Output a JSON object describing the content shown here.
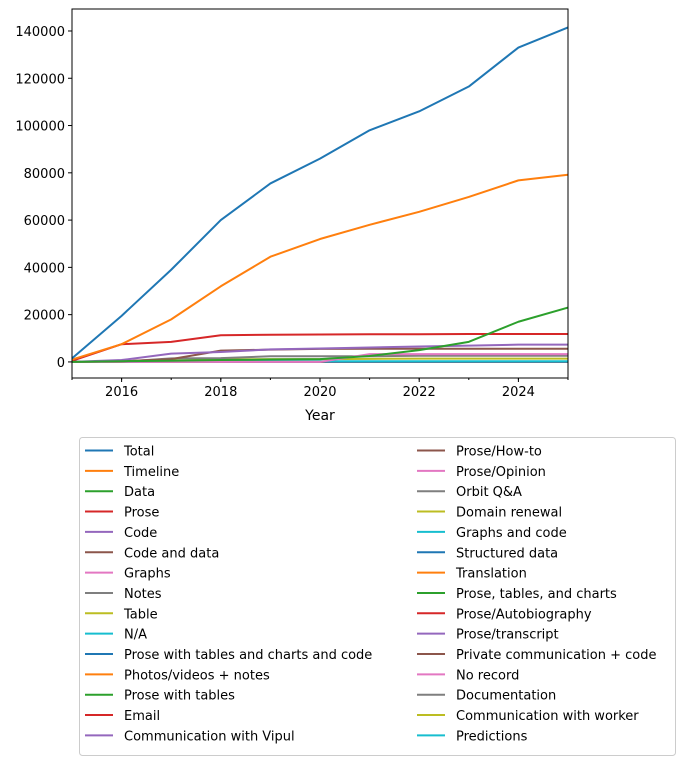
{
  "chart_data": {
    "type": "line",
    "title": "",
    "xlabel": "Year",
    "ylabel": "",
    "xlim": [
      2015,
      2025
    ],
    "ylim": [
      -6800,
      149300
    ],
    "x": [
      2015,
      2016,
      2017,
      2018,
      2019,
      2020,
      2021,
      2022,
      2023,
      2024,
      2025
    ],
    "xticks": [
      "2016",
      "2018",
      "2020",
      "2022",
      "2024"
    ],
    "yticks": [
      "0",
      "20000",
      "40000",
      "60000",
      "80000",
      "100000",
      "120000",
      "140000"
    ],
    "grid": false,
    "legend_placement": "below, two columns",
    "colors": [
      "#1f77b4",
      "#ff7f0e",
      "#2ca02c",
      "#d62728",
      "#9467bd",
      "#8c564b",
      "#e377c2",
      "#7f7f7f",
      "#bcbd22",
      "#17becf"
    ],
    "series": [
      {
        "name": "Total",
        "values": [
          1500,
          19500,
          39000,
          60000,
          75500,
          86000,
          98000,
          106000,
          116500,
          133000,
          141500
        ]
      },
      {
        "name": "Timeline",
        "values": [
          1000,
          7500,
          18000,
          32000,
          44500,
          52000,
          58000,
          63500,
          69800,
          76800,
          79200
        ]
      },
      {
        "name": "Data",
        "values": [
          0,
          300,
          500,
          800,
          1000,
          1200,
          2500,
          5000,
          8500,
          17000,
          23000
        ]
      },
      {
        "name": "Prose",
        "values": [
          500,
          7500,
          8500,
          11300,
          11500,
          11600,
          11700,
          11700,
          11800,
          11800,
          11800
        ]
      },
      {
        "name": "Code",
        "values": [
          0,
          800,
          3500,
          4200,
          5300,
          5700,
          6100,
          6500,
          6900,
          7300,
          7300
        ]
      },
      {
        "name": "Code and data",
        "values": [
          0,
          300,
          1200,
          4800,
          5200,
          5500,
          5600,
          5600,
          5600,
          5600,
          5600
        ]
      },
      {
        "name": "Graphs",
        "values": [
          0,
          0,
          0,
          0,
          0,
          0,
          3300,
          3300,
          3300,
          3300,
          3300
        ]
      },
      {
        "name": "Notes",
        "values": [
          0,
          100,
          1500,
          1600,
          2400,
          2400,
          2400,
          2600,
          2600,
          2600,
          2600
        ]
      },
      {
        "name": "Table",
        "values": [
          0,
          100,
          600,
          1000,
          1200,
          1200,
          1300,
          1400,
          1400,
          1400,
          1400
        ]
      },
      {
        "name": "N/A",
        "values": [
          0,
          100,
          200,
          300,
          300,
          300,
          300,
          300,
          300,
          300,
          300
        ]
      },
      {
        "name": "Prose with tables and charts and code",
        "values": [
          0,
          0,
          100,
          100,
          100,
          100,
          100,
          100,
          100,
          100,
          100
        ]
      },
      {
        "name": "Photos/videos + notes",
        "values": [
          0,
          0,
          0,
          100,
          100,
          100,
          100,
          100,
          100,
          100,
          100
        ]
      },
      {
        "name": "Prose with tables",
        "values": [
          0,
          0,
          100,
          200,
          200,
          200,
          200,
          200,
          200,
          200,
          200
        ]
      },
      {
        "name": "Email",
        "values": [
          0,
          0,
          0,
          0,
          50,
          50,
          50,
          50,
          50,
          50,
          50
        ]
      },
      {
        "name": "Communication with Vipul",
        "values": [
          0,
          0,
          0,
          50,
          50,
          50,
          50,
          50,
          50,
          50,
          50
        ]
      },
      {
        "name": "Prose/How-to",
        "values": [
          0,
          0,
          0,
          0,
          0,
          50,
          50,
          50,
          50,
          50,
          50
        ]
      },
      {
        "name": "Prose/Opinion",
        "values": [
          0,
          0,
          0,
          0,
          0,
          50,
          50,
          50,
          50,
          50,
          50
        ]
      },
      {
        "name": "Orbit Q&A",
        "values": [
          0,
          0,
          0,
          0,
          0,
          0,
          50,
          50,
          50,
          50,
          50
        ]
      },
      {
        "name": "Domain renewal",
        "values": [
          0,
          0,
          0,
          0,
          0,
          0,
          0,
          50,
          50,
          50,
          50
        ]
      },
      {
        "name": "Graphs and code",
        "values": [
          0,
          0,
          0,
          0,
          0,
          0,
          0,
          50,
          50,
          50,
          50
        ]
      },
      {
        "name": "Structured data",
        "values": [
          0,
          0,
          0,
          0,
          0,
          0,
          0,
          0,
          50,
          50,
          50
        ]
      },
      {
        "name": "Translation",
        "values": [
          0,
          0,
          0,
          0,
          0,
          0,
          0,
          0,
          50,
          50,
          50
        ]
      },
      {
        "name": "Prose, tables, and charts",
        "values": [
          0,
          0,
          0,
          0,
          0,
          0,
          0,
          0,
          0,
          50,
          50
        ]
      },
      {
        "name": "Prose/Autobiography",
        "values": [
          0,
          0,
          0,
          0,
          0,
          0,
          0,
          0,
          0,
          50,
          50
        ]
      },
      {
        "name": "Prose/transcript",
        "values": [
          0,
          0,
          0,
          0,
          0,
          0,
          0,
          0,
          0,
          0,
          50
        ]
      },
      {
        "name": "Private communication + code",
        "values": [
          0,
          0,
          0,
          0,
          0,
          0,
          0,
          0,
          0,
          0,
          50
        ]
      },
      {
        "name": "No record",
        "values": [
          0,
          0,
          0,
          0,
          0,
          0,
          0,
          0,
          0,
          0,
          50
        ]
      },
      {
        "name": "Documentation",
        "values": [
          0,
          0,
          0,
          0,
          0,
          0,
          0,
          0,
          0,
          0,
          50
        ]
      },
      {
        "name": "Communication with worker",
        "values": [
          0,
          0,
          0,
          0,
          0,
          0,
          0,
          0,
          0,
          0,
          50
        ]
      },
      {
        "name": "Predictions",
        "values": [
          0,
          0,
          0,
          0,
          0,
          0,
          0,
          0,
          0,
          0,
          50
        ]
      }
    ]
  }
}
